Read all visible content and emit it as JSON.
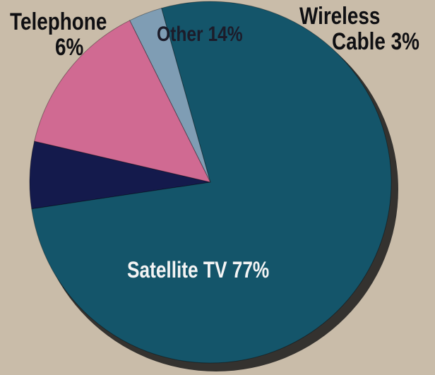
{
  "chart_data": {
    "type": "pie",
    "title": "",
    "slices": [
      {
        "label": "Satellite TV",
        "pct_text": "77%",
        "value": 77,
        "color": "#14556a"
      },
      {
        "label": "Telephone",
        "pct_text": "6%",
        "value": 6,
        "color": "#141a4c"
      },
      {
        "label": "Other",
        "pct_text": "14%",
        "value": 14,
        "color": "#d06a92"
      },
      {
        "label": "Wireless Cable",
        "pct_text": "3%",
        "value": 3,
        "color": "#7f9db4"
      }
    ],
    "labels": {
      "telephone_name": "Telephone",
      "telephone_pct": "6%",
      "other": "Other 14%",
      "wireless_line1": "Wireless",
      "wireless_line2": "Cable 3%",
      "satellite": "Satellite TV 77%"
    },
    "background": "#c9bca9",
    "shadow_color": "#1a1a1a"
  }
}
